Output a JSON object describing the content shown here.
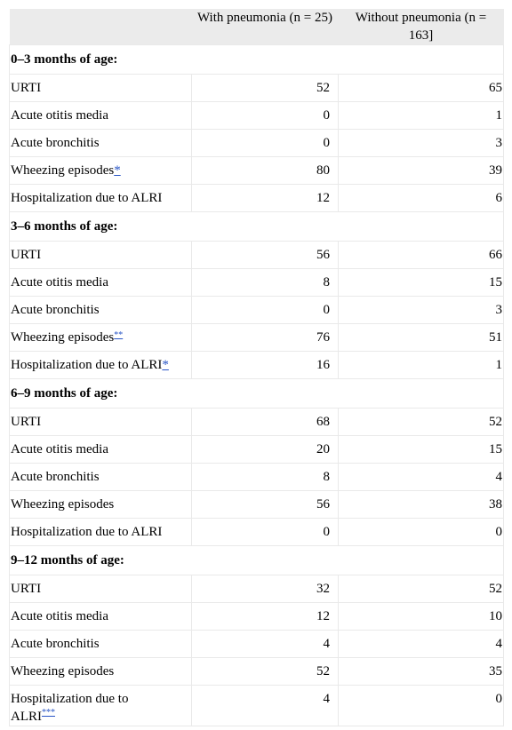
{
  "header": {
    "col1": "",
    "col2": "With pneumonia (n = 25)",
    "col3": "Without pneumonia (n = 163]"
  },
  "sections": [
    {
      "title": "0–3 months of age:",
      "rows": [
        {
          "label": "URTI",
          "fn": "",
          "with": "52",
          "without": "65"
        },
        {
          "label": "Acute otitis media",
          "fn": "",
          "with": "0",
          "without": "1"
        },
        {
          "label": "Acute bronchitis",
          "fn": "",
          "with": "0",
          "without": "3"
        },
        {
          "label": "Wheezing episodes",
          "fn": "*",
          "with": "80",
          "without": "39"
        },
        {
          "label": "Hospitalization due to ALRI",
          "fn": "",
          "with": "12",
          "without": "6"
        }
      ]
    },
    {
      "title": "3–6 months of age:",
      "rows": [
        {
          "label": "URTI",
          "fn": "",
          "with": "56",
          "without": "66"
        },
        {
          "label": "Acute otitis media",
          "fn": "",
          "with": "8",
          "without": "15"
        },
        {
          "label": "Acute bronchitis",
          "fn": "",
          "with": "0",
          "without": "3"
        },
        {
          "label": "Wheezing episodes",
          "fn": "**",
          "with": "76",
          "without": "51"
        },
        {
          "label": "Hospitalization due to ALRI",
          "fn": "*",
          "with": "16",
          "without": "1"
        }
      ]
    },
    {
      "title": "6–9 months of age:",
      "rows": [
        {
          "label": "URTI",
          "fn": "",
          "with": "68",
          "without": "52"
        },
        {
          "label": "Acute otitis media",
          "fn": "",
          "with": "20",
          "without": "15"
        },
        {
          "label": "Acute bronchitis",
          "fn": "",
          "with": "8",
          "without": "4"
        },
        {
          "label": "Wheezing episodes",
          "fn": "",
          "with": "56",
          "without": "38"
        },
        {
          "label": "Hospitalization due to ALRI",
          "fn": "",
          "with": "0",
          "without": "0"
        }
      ]
    },
    {
      "title": "9–12 months of age:",
      "rows": [
        {
          "label": "URTI",
          "fn": "",
          "with": "32",
          "without": "52"
        },
        {
          "label": "Acute otitis media",
          "fn": "",
          "with": "12",
          "without": "10"
        },
        {
          "label": "Acute bronchitis",
          "fn": "",
          "with": "4",
          "without": "4"
        },
        {
          "label": "Wheezing episodes",
          "fn": "",
          "with": "52",
          "without": "35"
        },
        {
          "label": "Hospitalization due to ALRI",
          "fn": "***",
          "with": "4",
          "without": "0"
        }
      ]
    }
  ]
}
